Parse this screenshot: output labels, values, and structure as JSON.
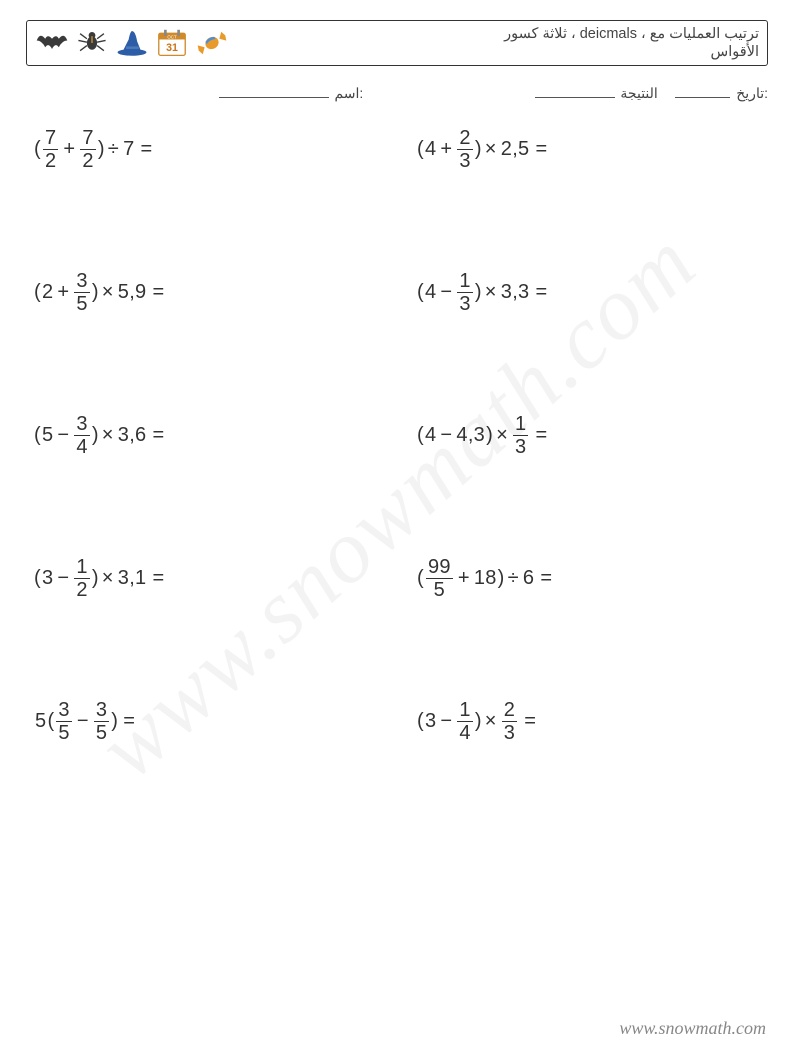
{
  "header": {
    "title_line1": "ترتيب العمليات مع ، deicmals ، ثلاثة كسور",
    "title_line2": "الأقواس"
  },
  "meta": {
    "name_label": ":اسم",
    "score_label": "النتيجة",
    "date_label": ":تاريخ",
    "name_blank_width": 110,
    "score_blank_width": 80,
    "date_blank_width": 55
  },
  "icons": [
    {
      "name": "bat",
      "fill": "#3a3a3a"
    },
    {
      "name": "spider",
      "fill": "#3a3a3a"
    },
    {
      "name": "hat",
      "fill": "#2d5da6"
    },
    {
      "name": "calendar",
      "frame": "#d08a2a",
      "day": "31"
    },
    {
      "name": "candy",
      "fill": "#e89a2a",
      "accent": "#4a90d9"
    }
  ],
  "problems": [
    {
      "tokens": [
        {
          "t": "p",
          "v": "("
        },
        {
          "t": "f",
          "n": "7",
          "d": "2"
        },
        {
          "t": "op",
          "v": "+"
        },
        {
          "t": "f",
          "n": "7",
          "d": "2"
        },
        {
          "t": "p",
          "v": ")"
        },
        {
          "t": "op",
          "v": "÷"
        },
        {
          "t": "n",
          "v": "7"
        },
        {
          "t": "eq"
        }
      ]
    },
    {
      "tokens": [
        {
          "t": "p",
          "v": "("
        },
        {
          "t": "n",
          "v": "4"
        },
        {
          "t": "op",
          "v": "+"
        },
        {
          "t": "f",
          "n": "2",
          "d": "3"
        },
        {
          "t": "p",
          "v": ")"
        },
        {
          "t": "op",
          "v": "×"
        },
        {
          "t": "n",
          "v": "2,5"
        },
        {
          "t": "eq"
        }
      ]
    },
    {
      "tokens": [
        {
          "t": "p",
          "v": "("
        },
        {
          "t": "n",
          "v": "2"
        },
        {
          "t": "op",
          "v": "+"
        },
        {
          "t": "f",
          "n": "3",
          "d": "5"
        },
        {
          "t": "p",
          "v": ")"
        },
        {
          "t": "op",
          "v": "×"
        },
        {
          "t": "n",
          "v": "5,9"
        },
        {
          "t": "eq"
        }
      ]
    },
    {
      "tokens": [
        {
          "t": "p",
          "v": "("
        },
        {
          "t": "n",
          "v": "4"
        },
        {
          "t": "op",
          "v": "−"
        },
        {
          "t": "f",
          "n": "1",
          "d": "3"
        },
        {
          "t": "p",
          "v": ")"
        },
        {
          "t": "op",
          "v": "×"
        },
        {
          "t": "n",
          "v": "3,3"
        },
        {
          "t": "eq"
        }
      ]
    },
    {
      "tokens": [
        {
          "t": "p",
          "v": "("
        },
        {
          "t": "n",
          "v": "5"
        },
        {
          "t": "op",
          "v": "−"
        },
        {
          "t": "f",
          "n": "3",
          "d": "4"
        },
        {
          "t": "p",
          "v": ")"
        },
        {
          "t": "op",
          "v": "×"
        },
        {
          "t": "n",
          "v": "3,6"
        },
        {
          "t": "eq"
        }
      ]
    },
    {
      "tokens": [
        {
          "t": "p",
          "v": "("
        },
        {
          "t": "n",
          "v": "4"
        },
        {
          "t": "op",
          "v": "−"
        },
        {
          "t": "n",
          "v": "4,3"
        },
        {
          "t": "p",
          "v": ")"
        },
        {
          "t": "op",
          "v": "×"
        },
        {
          "t": "f",
          "n": "1",
          "d": "3"
        },
        {
          "t": "eq"
        }
      ]
    },
    {
      "tokens": [
        {
          "t": "p",
          "v": "("
        },
        {
          "t": "n",
          "v": "3"
        },
        {
          "t": "op",
          "v": "−"
        },
        {
          "t": "f",
          "n": "1",
          "d": "2"
        },
        {
          "t": "p",
          "v": ")"
        },
        {
          "t": "op",
          "v": "×"
        },
        {
          "t": "n",
          "v": "3,1"
        },
        {
          "t": "eq"
        }
      ]
    },
    {
      "tokens": [
        {
          "t": "p",
          "v": "("
        },
        {
          "t": "f",
          "n": "99",
          "d": "5"
        },
        {
          "t": "op",
          "v": "+"
        },
        {
          "t": "n",
          "v": "18"
        },
        {
          "t": "p",
          "v": ")"
        },
        {
          "t": "op",
          "v": "÷"
        },
        {
          "t": "n",
          "v": "6"
        },
        {
          "t": "eq"
        }
      ]
    },
    {
      "tokens": [
        {
          "t": "n",
          "v": "5"
        },
        {
          "t": "p",
          "v": "("
        },
        {
          "t": "f",
          "n": "3",
          "d": "5"
        },
        {
          "t": "op",
          "v": "−"
        },
        {
          "t": "f",
          "n": "3",
          "d": "5"
        },
        {
          "t": "p",
          "v": ")"
        },
        {
          "t": "eq"
        }
      ]
    },
    {
      "tokens": [
        {
          "t": "p",
          "v": "("
        },
        {
          "t": "n",
          "v": "3"
        },
        {
          "t": "op",
          "v": "−"
        },
        {
          "t": "f",
          "n": "1",
          "d": "4"
        },
        {
          "t": "p",
          "v": ")"
        },
        {
          "t": "op",
          "v": "×"
        },
        {
          "t": "f",
          "n": "2",
          "d": "3"
        },
        {
          "t": "eq"
        }
      ]
    }
  ],
  "watermark": "www.snowmath.com",
  "footer": "www.snowmath.com"
}
